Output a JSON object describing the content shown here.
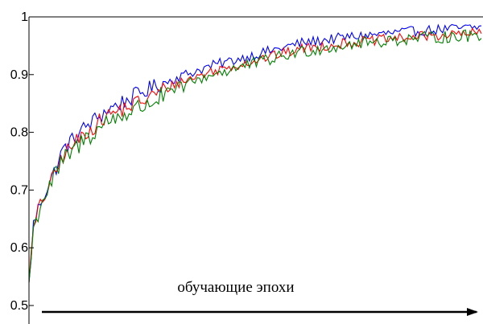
{
  "chart_data": {
    "type": "line",
    "title": "",
    "xlabel": "",
    "ylabel": "",
    "x_range": [
      0,
      199
    ],
    "ylim": [
      0.5,
      1.0
    ],
    "y_ticks": [
      "0.5",
      "0.6",
      "0.7",
      "0.8",
      "0.9",
      "1"
    ],
    "grid": false,
    "legend": "none",
    "annotation": "обучающие эпохи",
    "series": [
      {
        "color": "#0000ff",
        "anchors": [
          [
            0,
            0.54
          ],
          [
            2,
            0.64
          ],
          [
            5,
            0.68
          ],
          [
            10,
            0.72
          ],
          [
            15,
            0.77
          ],
          [
            25,
            0.81
          ],
          [
            35,
            0.84
          ],
          [
            50,
            0.87
          ],
          [
            65,
            0.895
          ],
          [
            80,
            0.915
          ],
          [
            100,
            0.935
          ],
          [
            120,
            0.955
          ],
          [
            140,
            0.965
          ],
          [
            160,
            0.972
          ],
          [
            180,
            0.978
          ],
          [
            199,
            0.982
          ]
        ],
        "noise": 0.009
      },
      {
        "color": "#ff0000",
        "anchors": [
          [
            0,
            0.54
          ],
          [
            2,
            0.63
          ],
          [
            5,
            0.675
          ],
          [
            10,
            0.715
          ],
          [
            15,
            0.76
          ],
          [
            25,
            0.8
          ],
          [
            35,
            0.83
          ],
          [
            50,
            0.855
          ],
          [
            65,
            0.885
          ],
          [
            80,
            0.905
          ],
          [
            100,
            0.925
          ],
          [
            120,
            0.945
          ],
          [
            140,
            0.955
          ],
          [
            160,
            0.962
          ],
          [
            180,
            0.968
          ],
          [
            199,
            0.972
          ]
        ],
        "noise": 0.009
      },
      {
        "color": "#008000",
        "anchors": [
          [
            0,
            0.54
          ],
          [
            2,
            0.63
          ],
          [
            5,
            0.675
          ],
          [
            10,
            0.715
          ],
          [
            15,
            0.75
          ],
          [
            25,
            0.79
          ],
          [
            35,
            0.82
          ],
          [
            50,
            0.845
          ],
          [
            65,
            0.875
          ],
          [
            80,
            0.9
          ],
          [
            100,
            0.92
          ],
          [
            120,
            0.94
          ],
          [
            140,
            0.952
          ],
          [
            160,
            0.96
          ],
          [
            180,
            0.965
          ],
          [
            199,
            0.968
          ]
        ],
        "noise": 0.011
      }
    ]
  }
}
